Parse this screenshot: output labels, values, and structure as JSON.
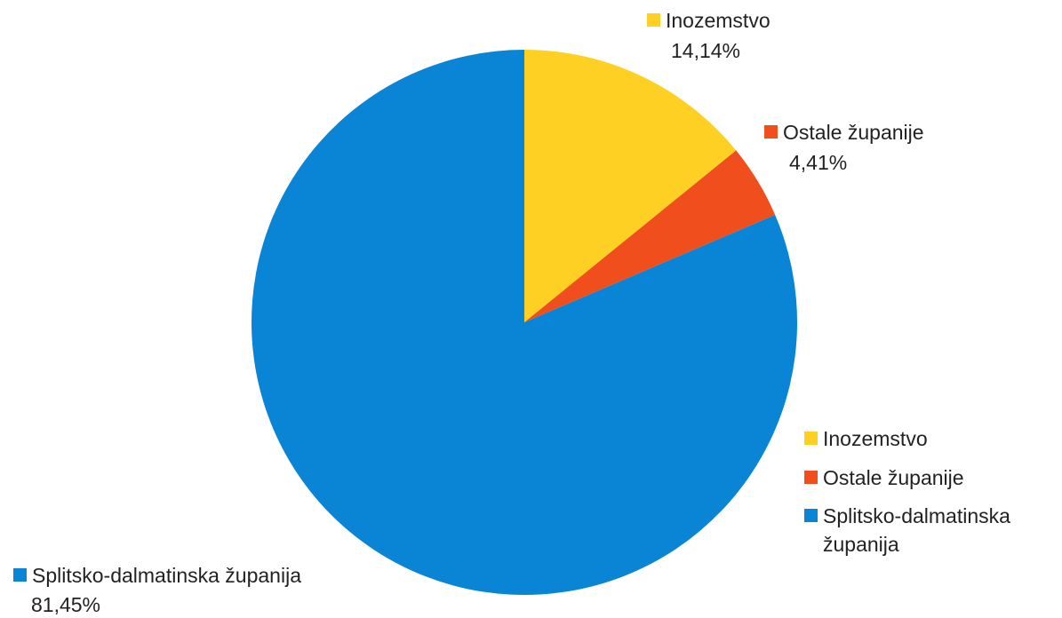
{
  "chart_data": {
    "type": "pie",
    "categories": [
      "Inozemstvo",
      "Ostale županije",
      "Splitsko-dalmatinska županija"
    ],
    "values": [
      14.14,
      4.41,
      81.45
    ],
    "value_labels": [
      "14,14%",
      "4,41%",
      "81,45%"
    ],
    "colors": [
      "#fdd023",
      "#f04e1d",
      "#0a84d4"
    ],
    "legend": "right"
  }
}
